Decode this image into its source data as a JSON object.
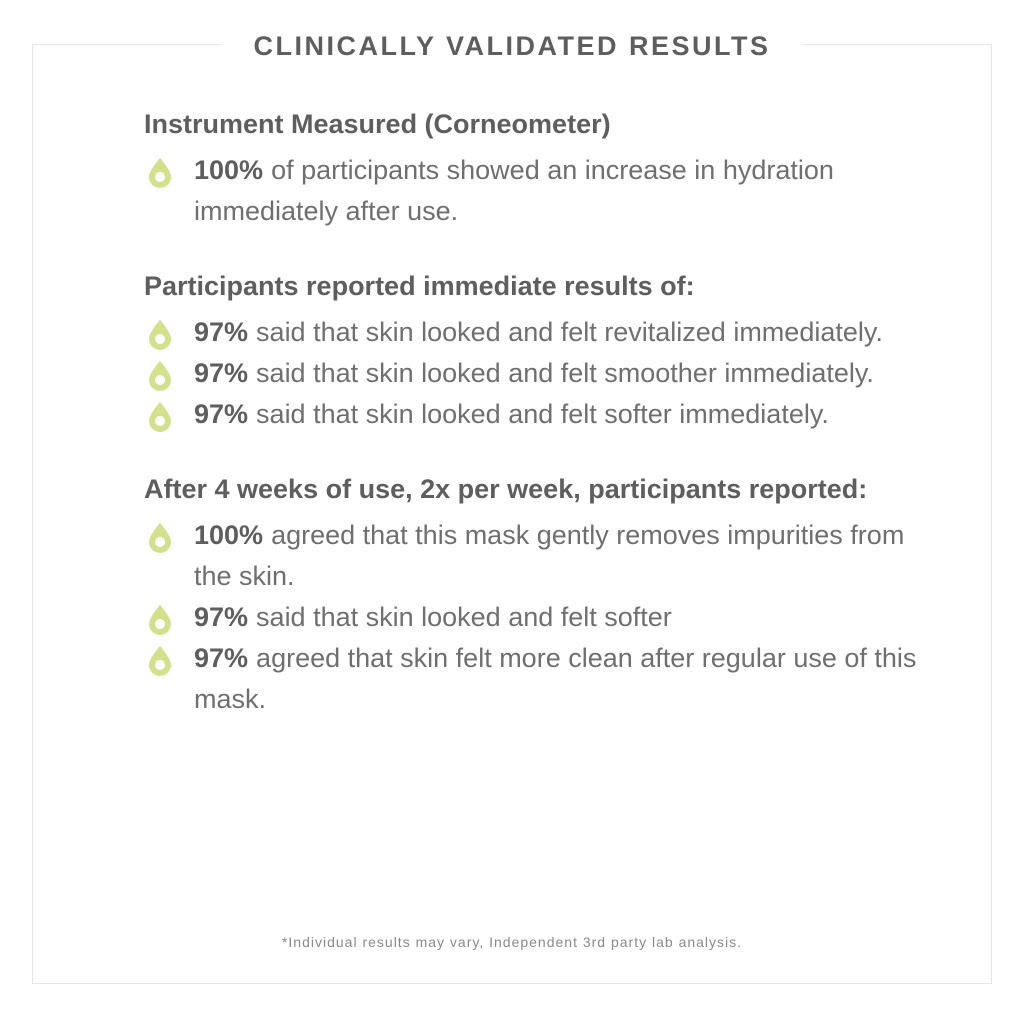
{
  "title": "CLINICALLY VALIDATED RESULTS",
  "accent_color": "#d4e08c",
  "icon": "droplet-icon",
  "sections": [
    {
      "heading": "Instrument Measured (Corneometer)",
      "items": [
        {
          "percent": "100%",
          "text": "of participants showed an increase in hydration immediately after use."
        }
      ]
    },
    {
      "heading": "Participants reported immediate results of:",
      "items": [
        {
          "percent": "97%",
          "text": "said that skin looked and felt revitalized immediately."
        },
        {
          "percent": "97%",
          "text": "said that skin looked and felt smoother immediately."
        },
        {
          "percent": "97%",
          "text": "said that skin looked and felt softer immediately."
        }
      ]
    },
    {
      "heading": "After 4 weeks of use, 2x per week, participants reported:",
      "items": [
        {
          "percent": "100%",
          "text": "agreed that this mask gently removes impurities from the skin."
        },
        {
          "percent": "97%",
          "text": "said that skin looked and felt softer"
        },
        {
          "percent": "97%",
          "text": "agreed that skin felt more clean after regular use of this mask."
        }
      ]
    }
  ],
  "footnote": "*Individual results may vary, Independent 3rd party lab analysis."
}
